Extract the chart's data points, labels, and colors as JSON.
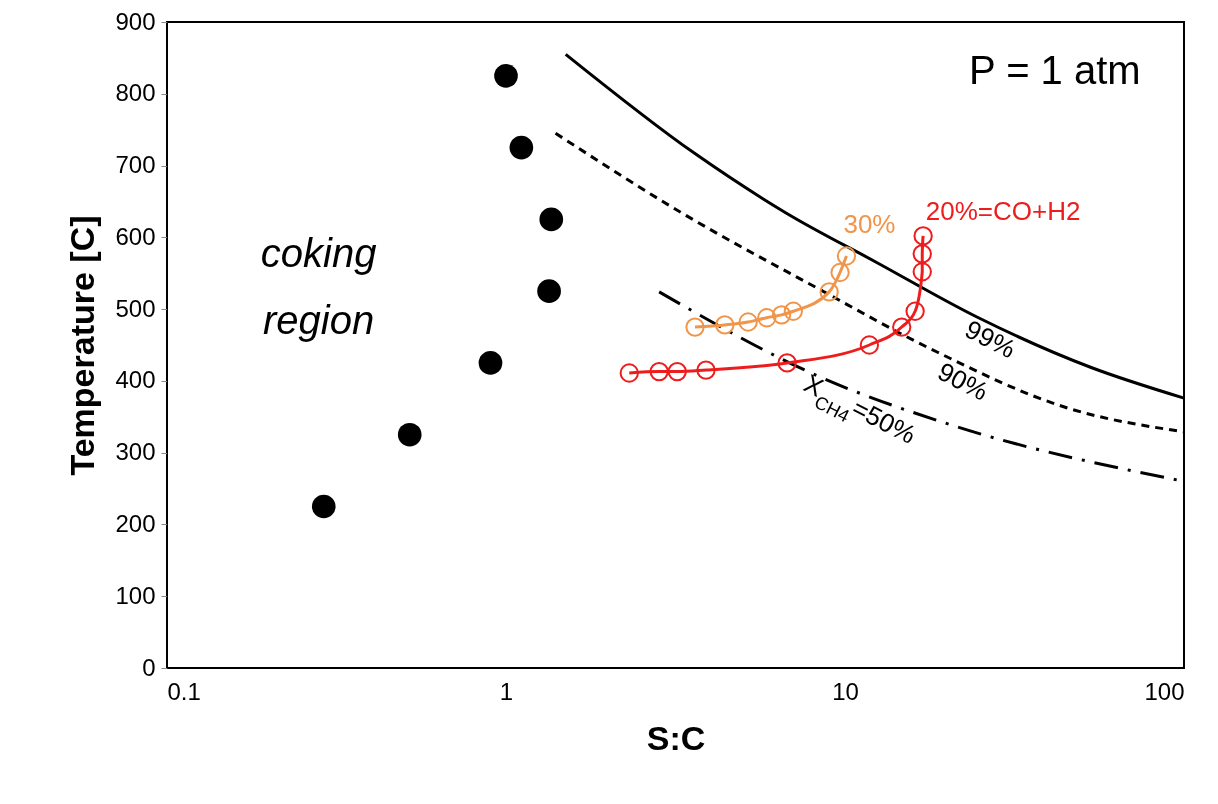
{
  "chart_data": {
    "type": "scatter",
    "xlabel": "S:C",
    "ylabel": "Temperature [C]",
    "log": "x",
    "xlim": [
      0.1,
      100
    ],
    "xticks": [
      0.1,
      1,
      10,
      100
    ],
    "ylim": [
      0,
      900
    ],
    "yticks": [
      0,
      100,
      200,
      300,
      400,
      500,
      600,
      700,
      800,
      900
    ],
    "grid": false,
    "legend": false,
    "annotations": [
      "P = 1 atm",
      "coking",
      "region"
    ],
    "series": [
      {
        "color": "#000000",
        "marker": "circle",
        "x": [
          0.29,
          0.52,
          0.9,
          1.34,
          1.36,
          1.11,
          1.0
        ],
        "values": [
          225,
          325,
          425,
          525,
          625,
          725,
          825
        ]
      },
      {
        "type": "line",
        "name": "99%",
        "color": "#000000",
        "line_style": "solid",
        "marker": "none",
        "x": [
          1.5,
          3.6,
          6.7,
          12.4,
          24.5,
          53,
          100
        ],
        "values": [
          855,
          717,
          634,
          565,
          489,
          419,
          376
        ]
      },
      {
        "type": "line",
        "name": "90%",
        "color": "#000000",
        "line_style": "dashed",
        "marker": "none",
        "x": [
          1.4,
          3.3,
          8.3,
          18,
          45.5,
          100
        ],
        "values": [
          745,
          634,
          529,
          444,
          362,
          329
        ]
      },
      {
        "type": "line",
        "name": "X$_{CH4}$=50%",
        "color": "#000000",
        "line_style": "dashdot",
        "marker": "none",
        "x": [
          2.83,
          8.3,
          21.1,
          100
        ],
        "values": [
          524,
          407,
          337,
          260
        ]
      },
      {
        "type": "line",
        "name": "30%",
        "color": "#f0954a",
        "line_style": "solid",
        "marker": "circle",
        "x": [
          3.61,
          4.42,
          5.18,
          5.88,
          6.5,
          7.04,
          8.98,
          9.67,
          10.1
        ],
        "values": [
          475,
          478,
          482,
          488,
          492,
          497,
          524,
          551,
          574
        ]
      },
      {
        "type": "line",
        "name": "20%=CO+H2",
        "color": "#ee1c1c",
        "line_style": "solid",
        "marker": "circle",
        "x": [
          2.31,
          2.83,
          3.2,
          3.89,
          6.75,
          11.8,
          14.7,
          16.1,
          16.9,
          16.9,
          17.0
        ],
        "values": [
          411,
          413,
          413,
          415,
          425,
          450,
          475,
          497,
          552,
          577,
          602
        ]
      }
    ]
  }
}
